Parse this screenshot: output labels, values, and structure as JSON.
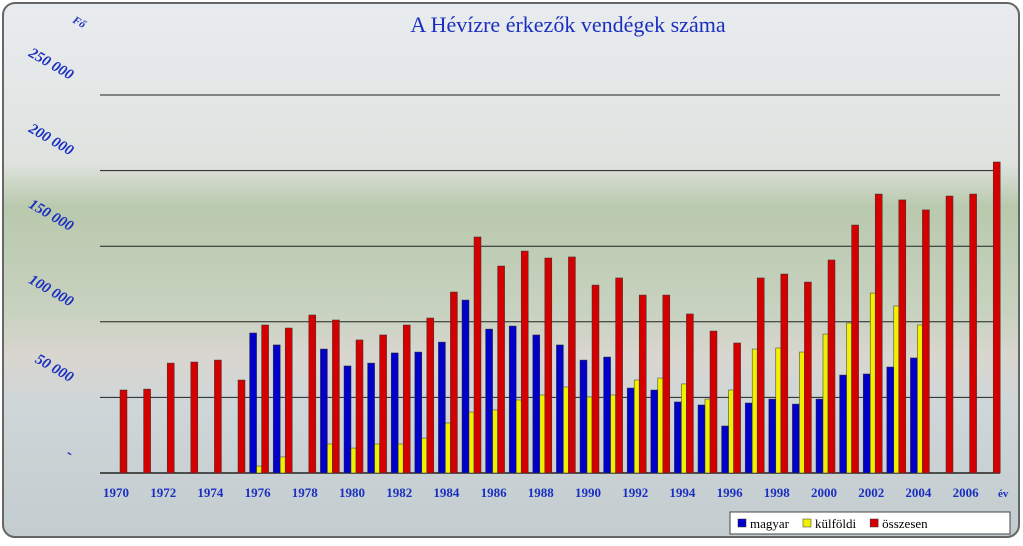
{
  "chart_data": {
    "type": "bar",
    "title": "A Hévízre érkezők vendégek száma",
    "y_label": "Fő",
    "x_label": "év",
    "categories": [
      "1970",
      null,
      "1972",
      null,
      "1974",
      null,
      "1976",
      null,
      "1978",
      null,
      "1980",
      null,
      "1982",
      null,
      "1984",
      null,
      "1986",
      null,
      "1988",
      null,
      "1990",
      null,
      "1992",
      null,
      "1994",
      null,
      "1996",
      null,
      "1998",
      null,
      "2000",
      null,
      "2002",
      null,
      "2004",
      null,
      "2006",
      null
    ],
    "series": [
      {
        "name": "magyar",
        "color": "#0000c8",
        "values": [
          null,
          null,
          null,
          null,
          null,
          null,
          92600,
          84700,
          null,
          82000,
          70800,
          72700,
          79400,
          80000,
          86600,
          114400,
          95200,
          97200,
          91300,
          84700,
          74700,
          76700,
          56200,
          54900,
          47000,
          45000,
          31100,
          46300,
          48900,
          45600,
          48900,
          64800,
          65500,
          70100,
          76100,
          null,
          null,
          null
        ]
      },
      {
        "name": "külföldi",
        "color": "#f0f000",
        "values": [
          null,
          null,
          null,
          null,
          null,
          null,
          4600,
          10600,
          null,
          19200,
          16500,
          19200,
          19200,
          23100,
          33100,
          40300,
          41700,
          48300,
          51600,
          56900,
          50300,
          51600,
          61500,
          62800,
          58900,
          48900,
          54900,
          82000,
          82700,
          80000,
          91900,
          99200,
          119000,
          110500,
          97900,
          null,
          null,
          null
        ]
      },
      {
        "name": "összesen",
        "color": "#d40000",
        "values": [
          54900,
          55500,
          72700,
          73400,
          74700,
          61500,
          97900,
          95900,
          104500,
          101200,
          88000,
          91300,
          97900,
          102500,
          119700,
          156100,
          136900,
          146800,
          142200,
          142900,
          124300,
          129000,
          117700,
          117700,
          105200,
          93900,
          86000,
          129000,
          131600,
          126300,
          140900,
          164000,
          184500,
          180600,
          174000,
          183200,
          184500,
          205700
        ]
      }
    ],
    "ylim": [
      0,
      250000
    ],
    "yticks": [
      {
        "value": 0,
        "label": "-"
      },
      {
        "value": 50000,
        "label": "50 000"
      },
      {
        "value": 100000,
        "label": "100 000"
      },
      {
        "value": 150000,
        "label": "150 000"
      },
      {
        "value": 200000,
        "label": "200 000"
      },
      {
        "value": 250000,
        "label": "250 000"
      }
    ],
    "grid": true,
    "legend": "bottom-right"
  }
}
